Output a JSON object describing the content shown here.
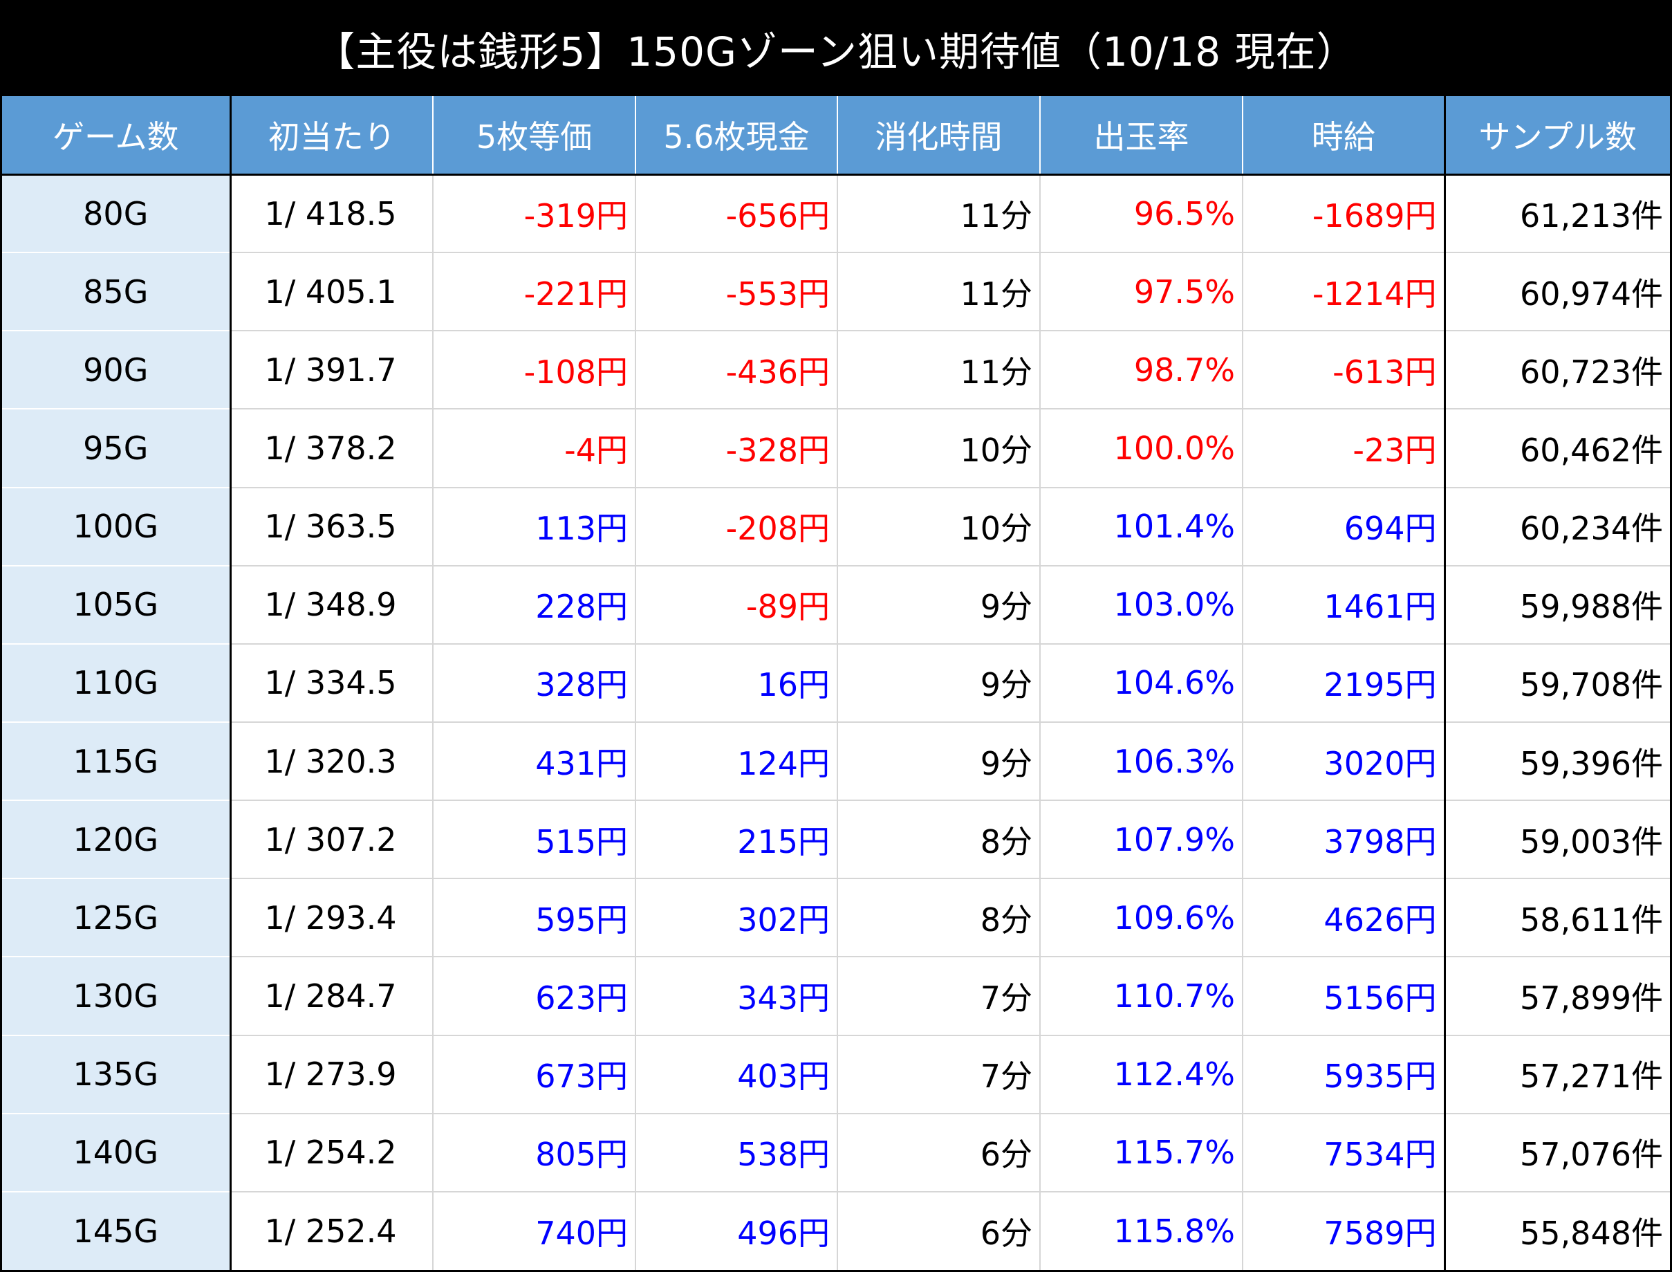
{
  "title": "【主役は銭形5】150Gゾーン狙い期待値（10/18 現在）",
  "columns": [
    "ゲーム数",
    "初当たり",
    "5枚等価",
    "5.6枚現金",
    "消化時間",
    "出玉率",
    "時給",
    "サンプル数"
  ],
  "colors": {
    "header_bg": "#5b9bd5",
    "first_col_bg": "#ddebf7",
    "negative": "#ff0000",
    "positive": "#0000ff"
  },
  "rows": [
    {
      "game": "80G",
      "rate": "1/ 418.5",
      "eq5": "-319円",
      "cash56": "-656円",
      "time": "11分",
      "payout": "96.5%",
      "hourly": "-1689円",
      "samples": "61,213件"
    },
    {
      "game": "85G",
      "rate": "1/ 405.1",
      "eq5": "-221円",
      "cash56": "-553円",
      "time": "11分",
      "payout": "97.5%",
      "hourly": "-1214円",
      "samples": "60,974件"
    },
    {
      "game": "90G",
      "rate": "1/ 391.7",
      "eq5": "-108円",
      "cash56": "-436円",
      "time": "11分",
      "payout": "98.7%",
      "hourly": "-613円",
      "samples": "60,723件"
    },
    {
      "game": "95G",
      "rate": "1/ 378.2",
      "eq5": "-4円",
      "cash56": "-328円",
      "time": "10分",
      "payout": "100.0%",
      "hourly": "-23円",
      "samples": "60,462件"
    },
    {
      "game": "100G",
      "rate": "1/ 363.5",
      "eq5": "113円",
      "cash56": "-208円",
      "time": "10分",
      "payout": "101.4%",
      "hourly": "694円",
      "samples": "60,234件"
    },
    {
      "game": "105G",
      "rate": "1/ 348.9",
      "eq5": "228円",
      "cash56": "-89円",
      "time": "9分",
      "payout": "103.0%",
      "hourly": "1461円",
      "samples": "59,988件"
    },
    {
      "game": "110G",
      "rate": "1/ 334.5",
      "eq5": "328円",
      "cash56": "16円",
      "time": "9分",
      "payout": "104.6%",
      "hourly": "2195円",
      "samples": "59,708件"
    },
    {
      "game": "115G",
      "rate": "1/ 320.3",
      "eq5": "431円",
      "cash56": "124円",
      "time": "9分",
      "payout": "106.3%",
      "hourly": "3020円",
      "samples": "59,396件"
    },
    {
      "game": "120G",
      "rate": "1/ 307.2",
      "eq5": "515円",
      "cash56": "215円",
      "time": "8分",
      "payout": "107.9%",
      "hourly": "3798円",
      "samples": "59,003件"
    },
    {
      "game": "125G",
      "rate": "1/ 293.4",
      "eq5": "595円",
      "cash56": "302円",
      "time": "8分",
      "payout": "109.6%",
      "hourly": "4626円",
      "samples": "58,611件"
    },
    {
      "game": "130G",
      "rate": "1/ 284.7",
      "eq5": "623円",
      "cash56": "343円",
      "time": "7分",
      "payout": "110.7%",
      "hourly": "5156円",
      "samples": "57,899件"
    },
    {
      "game": "135G",
      "rate": "1/ 273.9",
      "eq5": "673円",
      "cash56": "403円",
      "time": "7分",
      "payout": "112.4%",
      "hourly": "5935円",
      "samples": "57,271件"
    },
    {
      "game": "140G",
      "rate": "1/ 254.2",
      "eq5": "805円",
      "cash56": "538円",
      "time": "6分",
      "payout": "115.7%",
      "hourly": "7534円",
      "samples": "57,076件"
    },
    {
      "game": "145G",
      "rate": "1/ 252.4",
      "eq5": "740円",
      "cash56": "496円",
      "time": "6分",
      "payout": "115.8%",
      "hourly": "7589円",
      "samples": "55,848件"
    }
  ]
}
